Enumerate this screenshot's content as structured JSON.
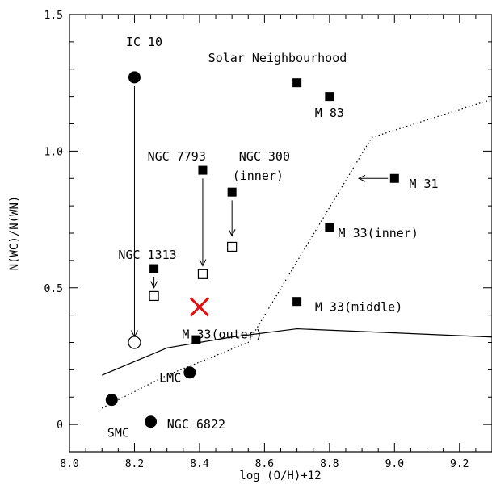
{
  "chart_data": {
    "type": "scatter",
    "title": "",
    "xlabel": "log (O/H)+12",
    "ylabel": "N(WC)/N(WN)",
    "xlim": [
      8.0,
      9.3
    ],
    "ylim": [
      -0.1,
      1.5
    ],
    "x_ticks": [
      8.0,
      8.2,
      8.4,
      8.6,
      8.8,
      9.0,
      9.2
    ],
    "x_tick_labels": [
      "8.0",
      "8.2",
      "8.4",
      "8.6",
      "8.8",
      "9.0",
      "9.2"
    ],
    "y_ticks": [
      0,
      0.5,
      1.0,
      1.5
    ],
    "y_tick_labels": [
      "0",
      "0.5",
      "1.0",
      "1.5"
    ],
    "grid": false,
    "series": [
      {
        "marker": "filled-circle",
        "points": [
          {
            "x": 8.2,
            "y": 1.27,
            "label": "IC 10"
          },
          {
            "x": 8.37,
            "y": 0.19,
            "label": "LMC"
          },
          {
            "x": 8.13,
            "y": 0.09,
            "label": "SMC"
          },
          {
            "x": 8.25,
            "y": 0.01,
            "label": "NGC 6822"
          }
        ]
      },
      {
        "marker": "open-circle",
        "points": [
          {
            "x": 8.2,
            "y": 0.3,
            "label": ""
          }
        ]
      },
      {
        "marker": "filled-square",
        "points": [
          {
            "x": 8.7,
            "y": 1.25,
            "label": ""
          },
          {
            "x": 8.8,
            "y": 1.2,
            "label": "M 83"
          },
          {
            "x": 8.41,
            "y": 0.93,
            "label": "NGC 7793"
          },
          {
            "x": 8.5,
            "y": 0.85,
            "label": "NGC 300 (inner)"
          },
          {
            "x": 9.0,
            "y": 0.9,
            "label": "M 31"
          },
          {
            "x": 8.8,
            "y": 0.72,
            "label": "M 33(inner)"
          },
          {
            "x": 8.26,
            "y": 0.57,
            "label": "NGC 1313"
          },
          {
            "x": 8.7,
            "y": 0.45,
            "label": "M 33(middle)"
          },
          {
            "x": 8.39,
            "y": 0.31,
            "label": "M 33(outer)"
          }
        ]
      },
      {
        "marker": "open-square",
        "points": [
          {
            "x": 8.41,
            "y": 0.55,
            "label": ""
          },
          {
            "x": 8.5,
            "y": 0.65,
            "label": ""
          },
          {
            "x": 8.26,
            "y": 0.47,
            "label": ""
          }
        ]
      },
      {
        "marker": "red-cross",
        "points": [
          {
            "x": 8.4,
            "y": 0.43,
            "label": ""
          }
        ]
      }
    ],
    "arrows": [
      {
        "from": [
          8.2,
          1.24
        ],
        "to": [
          8.2,
          0.32
        ]
      },
      {
        "from": [
          8.41,
          0.9
        ],
        "to": [
          8.41,
          0.58
        ]
      },
      {
        "from": [
          8.5,
          0.82
        ],
        "to": [
          8.5,
          0.69
        ]
      },
      {
        "from": [
          8.26,
          0.54
        ],
        "to": [
          8.26,
          0.5
        ]
      },
      {
        "from": [
          8.98,
          0.9
        ],
        "to": [
          8.89,
          0.9
        ]
      }
    ],
    "lines": [
      {
        "style": "solid",
        "points": [
          [
            8.1,
            0.18
          ],
          [
            8.3,
            0.28
          ],
          [
            8.45,
            0.31
          ],
          [
            8.5,
            0.32
          ],
          [
            8.7,
            0.35
          ],
          [
            9.3,
            0.32
          ]
        ]
      },
      {
        "style": "dotted",
        "points": [
          [
            8.1,
            0.06
          ],
          [
            8.3,
            0.18
          ],
          [
            8.55,
            0.3
          ],
          [
            8.93,
            1.05
          ],
          [
            9.3,
            1.19
          ]
        ]
      }
    ],
    "annotations": [
      {
        "text": "IC 10",
        "x": 8.23,
        "y": 1.4
      },
      {
        "text": "Solar Neighbourhood",
        "x": 8.64,
        "y": 1.34
      },
      {
        "text": "M 83",
        "x": 8.8,
        "y": 1.14
      },
      {
        "text": "NGC 7793",
        "x": 8.33,
        "y": 0.98
      },
      {
        "text": "NGC 300",
        "x": 8.6,
        "y": 0.98
      },
      {
        "text": "(inner)",
        "x": 8.58,
        "y": 0.91
      },
      {
        "text": "M 31",
        "x": 9.09,
        "y": 0.88
      },
      {
        "text": "M 33(inner)",
        "x": 8.95,
        "y": 0.7
      },
      {
        "text": "NGC 1313",
        "x": 8.24,
        "y": 0.62
      },
      {
        "text": "M 33(middle)",
        "x": 8.89,
        "y": 0.43
      },
      {
        "text": "M 33(outer)",
        "x": 8.47,
        "y": 0.33
      },
      {
        "text": "LMC",
        "x": 8.31,
        "y": 0.17
      },
      {
        "text": "SMC",
        "x": 8.15,
        "y": -0.03
      },
      {
        "text": "NGC 6822",
        "x": 8.39,
        "y": 0.0
      }
    ]
  }
}
